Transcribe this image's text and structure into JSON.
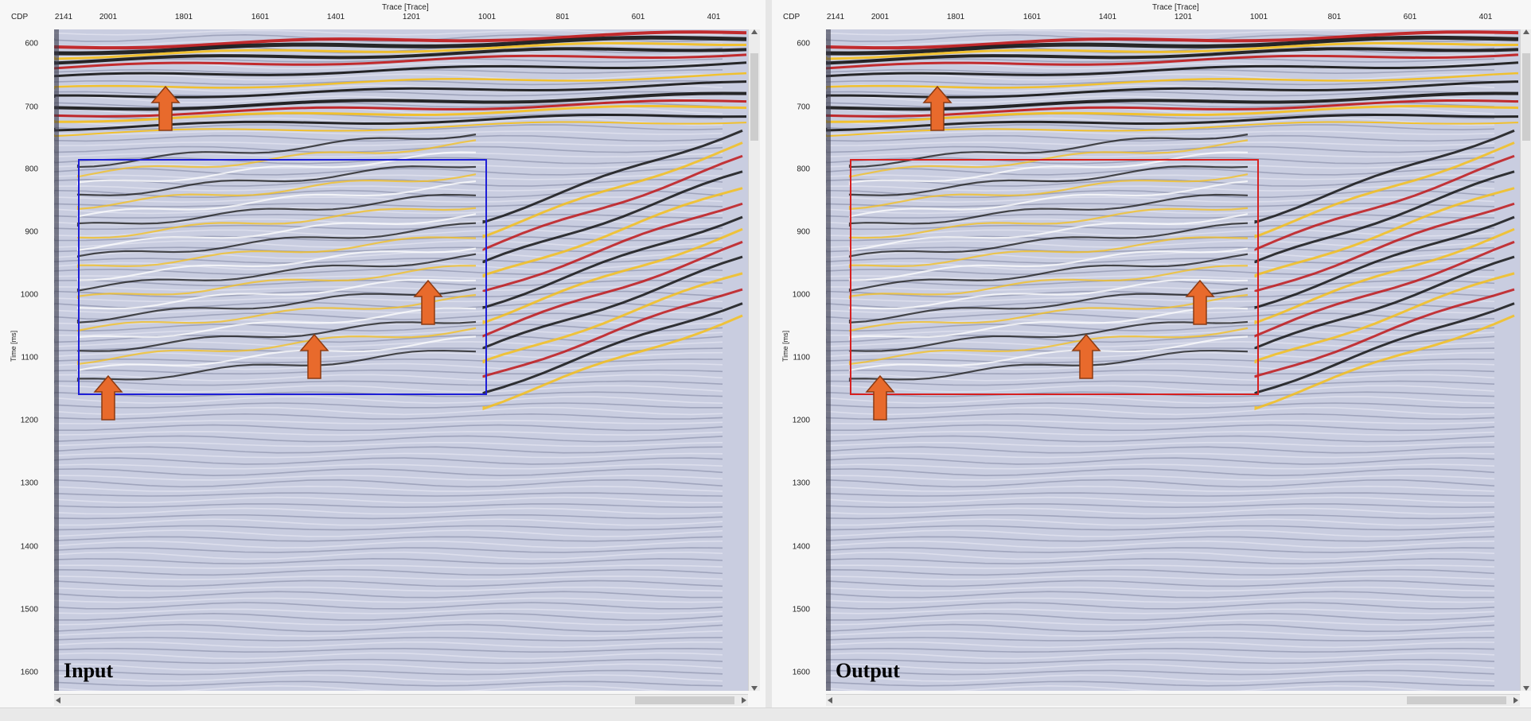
{
  "panels": [
    {
      "caption": "Input",
      "box_color": "#1f1fd6",
      "x_axis_title": "Trace [Trace]",
      "cdp_label": "CDP",
      "y_axis_title": "Time [ms]",
      "x_ticks": [
        "2141",
        "2001",
        "1801",
        "1601",
        "1401",
        "1201",
        "1001",
        "801",
        "601",
        "401"
      ],
      "y_ticks": [
        "600",
        "700",
        "800",
        "900",
        "1000",
        "1100",
        "1200",
        "1300",
        "1400",
        "1500",
        "1600"
      ]
    },
    {
      "caption": "Output",
      "box_color": "#d62020",
      "x_axis_title": "Trace [Trace]",
      "cdp_label": "CDP",
      "y_axis_title": "Time [ms]",
      "x_ticks": [
        "2141",
        "2001",
        "1801",
        "1601",
        "1401",
        "1201",
        "1001",
        "801",
        "601",
        "401"
      ],
      "y_ticks": [
        "600",
        "700",
        "800",
        "900",
        "1000",
        "1100",
        "1200",
        "1300",
        "1400",
        "1500",
        "1600"
      ]
    }
  ],
  "colors": {
    "arrow_fill": "#e86a2c",
    "arrow_stroke": "#8a3a12",
    "seismic_background": "#c9cde0",
    "reflector_black": "#141414",
    "reflector_red": "#c0181a",
    "reflector_yellow": "#f4bf1c"
  },
  "icons": [
    "scroll-up-arrow-icon",
    "scroll-down-arrow-icon",
    "scroll-left-arrow-icon",
    "scroll-right-arrow-icon",
    "highlight-arrow-icon"
  ]
}
